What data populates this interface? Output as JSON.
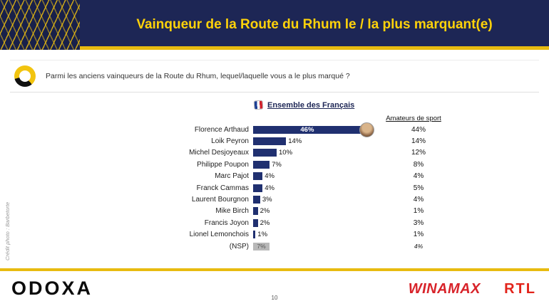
{
  "header": {
    "title": "Vainqueur de la Route du Rhum le / la plus marquant(e)"
  },
  "question": {
    "text": "Parmi les anciens vainqueurs de la Route du Rhum, lequel/laquelle vous a le plus marqué ?"
  },
  "chart_data": {
    "type": "bar",
    "orientation": "horizontal",
    "title": "Ensemble des Français",
    "secondary_column_header": "Amateurs de sport",
    "categories": [
      "Florence Arthaud",
      "Loik Peyron",
      "Michel Desjoyeaux",
      "Philippe Poupon",
      "Marc Pajot",
      "Franck Cammas",
      "Laurent Bourgnon",
      "Mike Birch",
      "Francis Joyon",
      "Lionel Lemonchois",
      "(NSP)"
    ],
    "series": [
      {
        "name": "Ensemble des Français",
        "values": [
          46,
          14,
          10,
          7,
          4,
          4,
          3,
          2,
          2,
          1,
          7
        ]
      },
      {
        "name": "Amateurs de sport",
        "values": [
          44,
          14,
          12,
          8,
          4,
          5,
          4,
          1,
          3,
          1,
          4
        ]
      }
    ],
    "value_suffix": "%",
    "xlim": [
      0,
      50
    ],
    "bar_color": "#203070",
    "nsp_bar_color": "#b8b8b8",
    "legend_position": "none",
    "grid": false
  },
  "credit": "Crédit photo : Barbetorte",
  "footer": {
    "page_number": "10",
    "odoxa": "ODOXA",
    "winamax": "WINAMAX",
    "rtl": "RTL"
  },
  "colors": {
    "navy": "#1d2655",
    "gold": "#e8bb10",
    "title_yellow": "#ffd20a",
    "logo_red": "#d8232a"
  }
}
